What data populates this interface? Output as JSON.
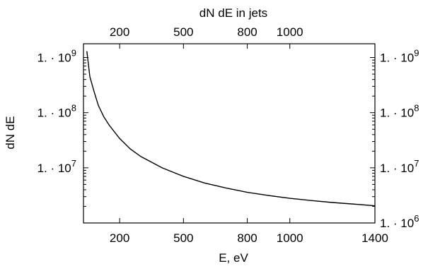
{
  "chart_data": {
    "type": "line",
    "title": "dN dE in jets",
    "xlabel": "E, eV",
    "ylabel": "dN dE",
    "xlim": [
      30,
      1400
    ],
    "ylim_log10": [
      6.0,
      9.25
    ],
    "y_scale": "log",
    "grid": false,
    "legend": "none",
    "bottom_ticks": [
      {
        "value": 200,
        "label": "200"
      },
      {
        "value": 500,
        "label": "500"
      },
      {
        "value": 800,
        "label": "800"
      },
      {
        "value": 1000,
        "label": "1000"
      },
      {
        "value": 1400,
        "label": "1400"
      }
    ],
    "top_ticks": [
      {
        "value": 200,
        "label": "200"
      },
      {
        "value": 500,
        "label": "500"
      },
      {
        "value": 800,
        "label": "800"
      },
      {
        "value": 1000,
        "label": "1000"
      }
    ],
    "left_ticks": [
      {
        "exp": 9,
        "base": "1. · 10",
        "sup": "9"
      },
      {
        "exp": 8,
        "base": "1. · 10",
        "sup": "8"
      },
      {
        "exp": 7,
        "base": "1. · 10",
        "sup": "7"
      }
    ],
    "right_ticks": [
      {
        "exp": 9,
        "base": "1. · 10",
        "sup": "9"
      },
      {
        "exp": 8,
        "base": "1. · 10",
        "sup": "8"
      },
      {
        "exp": 7,
        "base": "1. · 10",
        "sup": "7"
      },
      {
        "exp": 6,
        "base": "1. · 10",
        "sup": "6"
      }
    ],
    "series": [
      {
        "x": [
          46,
          60,
          80,
          100,
          125,
          150,
          200,
          250,
          300,
          400,
          500,
          600,
          700,
          800,
          900,
          1000,
          1100,
          1200,
          1300,
          1400
        ],
        "y": [
          1300000000.0,
          450000000.0,
          240000000.0,
          135000000.0,
          85000000.0,
          60000000.0,
          34000000.0,
          22000000.0,
          16000000.0,
          10000000.0,
          7000000.0,
          5300000.0,
          4300000.0,
          3600000.0,
          3150000.0,
          2800000.0,
          2550000.0,
          2350000.0,
          2200000.0,
          2050000.0
        ]
      }
    ]
  }
}
